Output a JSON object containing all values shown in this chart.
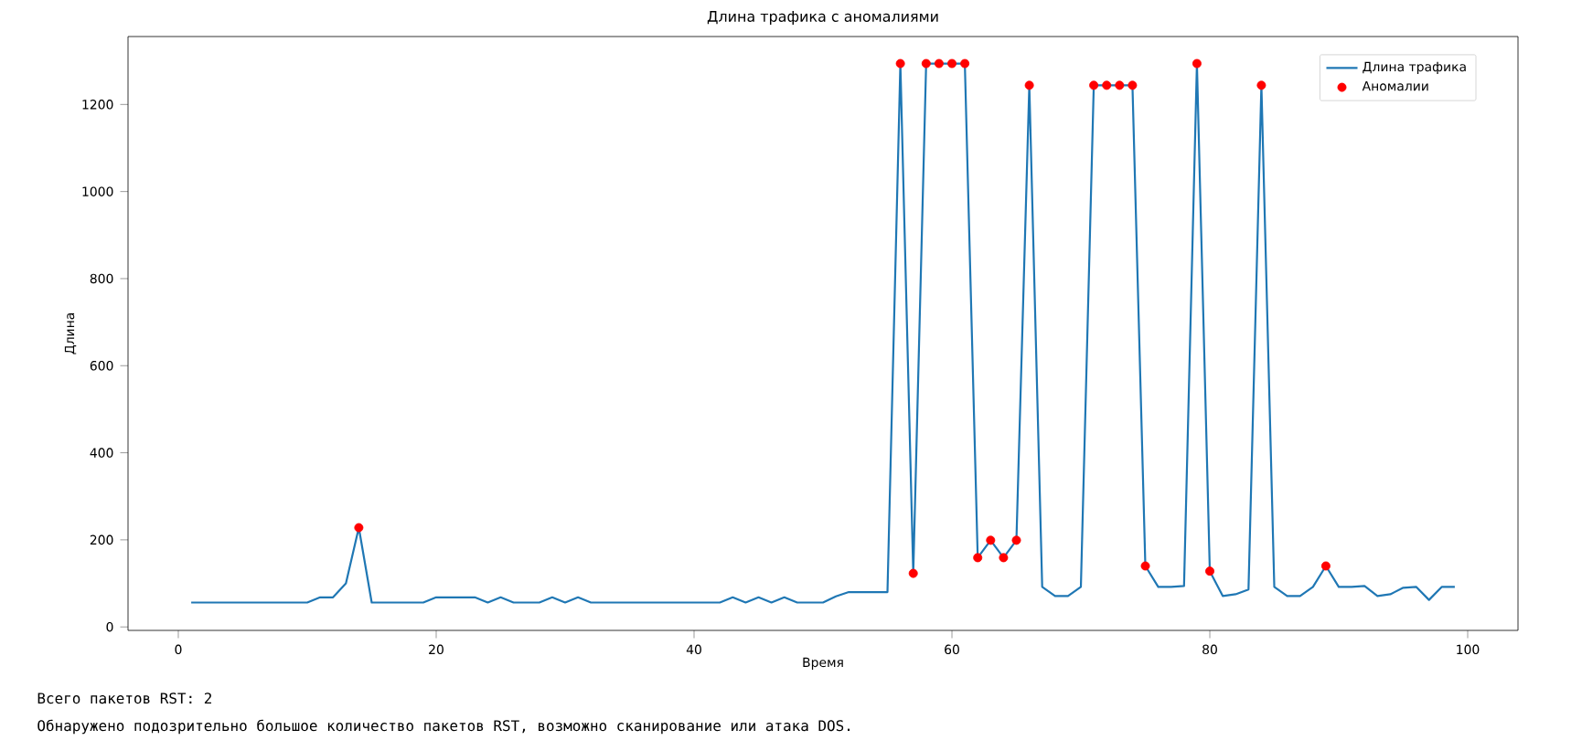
{
  "chart_data": {
    "type": "line",
    "title": "Длина трафика с аномалиями",
    "xlabel": "Время",
    "ylabel": "Длина",
    "xlim": [
      -3.9,
      103.9
    ],
    "ylim": [
      -8,
      1356
    ],
    "xticks": [
      0,
      20,
      40,
      60,
      80,
      100
    ],
    "yticks": [
      0,
      200,
      400,
      600,
      800,
      1000,
      1200
    ],
    "grid": false,
    "legend": "top right",
    "series": [
      {
        "name": "Длина трафика",
        "color": "#1f77b4",
        "line_style": "solid",
        "x": [
          1,
          2,
          3,
          4,
          5,
          6,
          7,
          8,
          9,
          10,
          11,
          12,
          13,
          14,
          15,
          16,
          17,
          18,
          19,
          20,
          21,
          22,
          23,
          24,
          25,
          26,
          27,
          28,
          29,
          30,
          31,
          32,
          33,
          34,
          35,
          36,
          37,
          38,
          39,
          40,
          41,
          42,
          43,
          44,
          45,
          46,
          47,
          48,
          49,
          50,
          51,
          52,
          53,
          54,
          55,
          56,
          57,
          58,
          59,
          60,
          61,
          62,
          63,
          64,
          65,
          66,
          67,
          68,
          69,
          70,
          71,
          72,
          73,
          74,
          75,
          76,
          77,
          78,
          79,
          80,
          81,
          82,
          83,
          84,
          85,
          86,
          87,
          88,
          89,
          90,
          91,
          92,
          93,
          94,
          95,
          96,
          97,
          98,
          99
        ],
        "values": [
          56,
          56,
          56,
          56,
          56,
          56,
          56,
          56,
          56,
          56,
          68,
          68,
          100,
          228,
          56,
          56,
          56,
          56,
          56,
          68,
          68,
          68,
          68,
          56,
          68,
          56,
          56,
          56,
          68,
          56,
          68,
          56,
          56,
          56,
          56,
          56,
          56,
          56,
          56,
          56,
          56,
          56,
          68,
          56,
          68,
          56,
          68,
          56,
          56,
          56,
          70,
          80,
          80,
          80,
          80,
          1294,
          123,
          1294,
          1294,
          1294,
          1294,
          159,
          199,
          159,
          199,
          1244,
          92,
          71,
          71,
          92,
          1244,
          1244,
          1244,
          1244,
          140,
          92,
          92,
          94,
          1294,
          128,
          71,
          75,
          86,
          1244,
          92,
          71,
          71,
          92,
          140,
          92,
          92,
          94,
          71,
          75,
          90,
          92,
          62,
          92,
          92
        ]
      },
      {
        "name": "Аномалии",
        "type": "scatter",
        "color": "#ff0000",
        "x": [
          14,
          56,
          57,
          58,
          59,
          60,
          61,
          62,
          63,
          64,
          65,
          66,
          71,
          72,
          73,
          74,
          75,
          79,
          80,
          84,
          89
        ],
        "values": [
          228,
          1294,
          123,
          1294,
          1294,
          1294,
          1294,
          159,
          199,
          159,
          199,
          1244,
          1244,
          1244,
          1244,
          1244,
          140,
          1294,
          128,
          1244,
          140
        ]
      }
    ],
    "annotations": [
      "Всего пакетов RST: 2",
      "Обнаружено подозрительно большое количество пакетов RST, возможно сканирование или атака DOS."
    ]
  }
}
